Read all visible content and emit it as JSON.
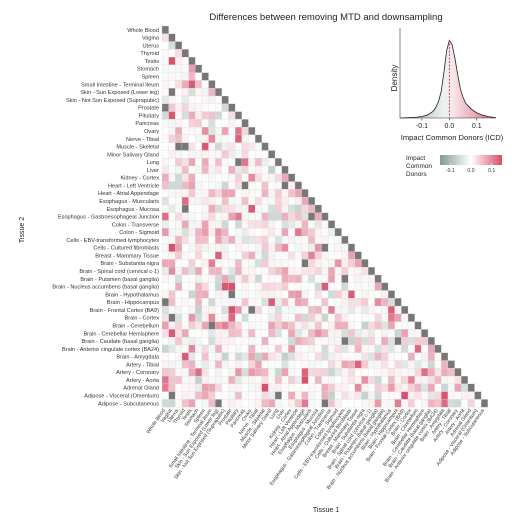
{
  "chart_data": {
    "type": "heatmap",
    "title": "Differences between removing MTD and downsampling",
    "xlabel": "Tissue 1",
    "ylabel": "Tissue 2",
    "tissues": [
      "Whole Blood",
      "Vagina",
      "Uterus",
      "Thyroid",
      "Testis",
      "Stomach",
      "Spleen",
      "Small Intestine - Terminal Ileum",
      "Skin - Sun Exposed (Lower leg)",
      "Skin - Not Sun Exposed (Suprapubic)",
      "Prostate",
      "Pituitary",
      "Pancreas",
      "Ovary",
      "Nerve - Tibial",
      "Muscle - Skeletal",
      "Minor Salivary Gland",
      "Lung",
      "Liver",
      "Kidney - Cortex",
      "Heart - Left Ventricle",
      "Heart - Atrial Appendage",
      "Esophagus - Muscularis",
      "Esophagus - Mucosa",
      "Esophagus - Gastroesophageal Junction",
      "Colon - Transverse",
      "Colon - Sigmoid",
      "Cells - EBV-transformed lymphocytes",
      "Cells - Cultured fibroblasts",
      "Breast - Mammary Tissue",
      "Brain - Substantia nigra",
      "Brain - Spinal cord (cervical c-1)",
      "Brain - Putamen (basal ganglia)",
      "Brain - Nucleus accumbens (basal ganglia)",
      "Brain - Hypothalamus",
      "Brain - Hippocampus",
      "Brain - Frontal Cortex (BA9)",
      "Brain - Cortex",
      "Brain - Cerebellum",
      "Brain - Cerebellar Hemisphere",
      "Brain - Caudate (basal ganglia)",
      "Brain - Anterior cingulate cortex (BA24)",
      "Brain - Amygdala",
      "Artery - Tibial",
      "Artery - Coronary",
      "Artery - Aorta",
      "Adrenal Gland",
      "Adipose - Visceral (Omentum)",
      "Adipose - Subcutaneous"
    ],
    "value_range": [
      -0.15,
      0.15
    ],
    "missing_value_color": "#777777",
    "low_color": "#7d9b95",
    "mid_color": "#ffffff",
    "high_color": "#d64d6a",
    "cell_seed": 7,
    "density": {
      "xlabel": "Impact Common Donors (ICD)",
      "ylabel": "Density",
      "xticks": [
        "-0.1",
        "0.0",
        "0.1"
      ],
      "xlim": [
        -0.18,
        0.17
      ],
      "reference_line": 0.0,
      "x": [
        -0.18,
        -0.15,
        -0.12,
        -0.1,
        -0.08,
        -0.06,
        -0.05,
        -0.04,
        -0.03,
        -0.02,
        -0.01,
        0.0,
        0.01,
        0.02,
        0.03,
        0.04,
        0.05,
        0.06,
        0.08,
        0.1,
        0.12,
        0.14,
        0.17
      ],
      "y": [
        0,
        0.02,
        0.05,
        0.1,
        0.2,
        0.45,
        0.7,
        1.1,
        1.8,
        3.1,
        4.6,
        5.3,
        5.0,
        4.1,
        3.0,
        2.0,
        1.4,
        1.0,
        0.6,
        0.35,
        0.2,
        0.1,
        0.02
      ],
      "ymax": 5.6
    },
    "legend": {
      "title_lines": [
        "Impact",
        "Common",
        "Donors"
      ],
      "ticks": [
        "-0.1",
        "0.0",
        "0.1"
      ]
    }
  }
}
